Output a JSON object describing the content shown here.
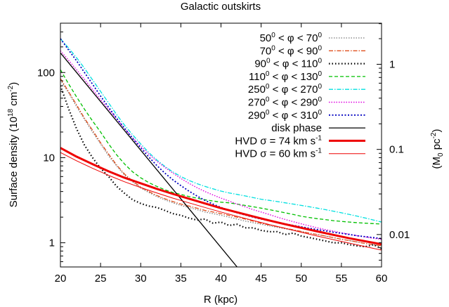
{
  "chart_data": {
    "type": "line",
    "title": "Galactic outskirts",
    "xlabel": "R (kpc)",
    "ylabel": {
      "main": "Surface density (10",
      "sup1": "18",
      "mid": " cm",
      "sup2": "-2",
      "end": ")"
    },
    "y2label": {
      "main": "(M",
      "sub": "0",
      "mid": " pc",
      "sup": "-2",
      "end": ")"
    },
    "xlim": [
      20,
      60
    ],
    "ylim": [
      0.52,
      380
    ],
    "yscale": "log",
    "xticks": [
      20,
      25,
      30,
      35,
      40,
      45,
      50,
      55,
      60
    ],
    "yticks": [
      {
        "value": 1,
        "label": "1"
      },
      {
        "value": 10,
        "label": "10"
      },
      {
        "value": 100,
        "label": "100"
      }
    ],
    "y2ticks": [
      {
        "value": 1.25,
        "label": "0.01"
      },
      {
        "value": 12.5,
        "label": "0.1"
      },
      {
        "value": 125,
        "label": "1"
      }
    ],
    "grid": false,
    "legend_position": "top-right",
    "series": [
      {
        "legend": {
          "a": "50",
          "as": "0",
          "b": " < φ < 70",
          "bs": "0"
        },
        "color": "#777777",
        "dash": "1.5,2",
        "width": 1.2,
        "x": [
          20,
          21,
          22,
          23,
          24,
          25,
          26,
          27,
          28,
          29,
          30,
          31,
          32,
          33,
          34,
          35,
          36,
          37,
          38,
          39,
          40,
          41,
          42,
          43,
          44,
          45,
          46,
          47,
          48,
          49,
          50,
          51,
          52,
          53,
          54,
          55,
          56,
          57,
          58,
          59,
          60
        ],
        "y": [
          82,
          58,
          40,
          28,
          20,
          14.5,
          10.5,
          8,
          6.2,
          5.2,
          4.4,
          3.9,
          3.5,
          3.2,
          2.95,
          2.75,
          2.6,
          2.45,
          2.3,
          2.2,
          2.1,
          2.0,
          1.9,
          1.8,
          1.72,
          1.65,
          1.58,
          1.52,
          1.46,
          1.4,
          1.35,
          1.3,
          1.25,
          1.2,
          1.15,
          1.1,
          1.06,
          1.02,
          0.98,
          0.95,
          0.92
        ]
      },
      {
        "legend": {
          "a": "70",
          "as": "0",
          "b": " < φ < 90",
          "bs": "0"
        },
        "color": "#e0501e",
        "dash": "6,2,1.5,2",
        "width": 1.3,
        "x": [
          20,
          21,
          22,
          23,
          24,
          25,
          26,
          27,
          28,
          29,
          30,
          31,
          32,
          33,
          34,
          35,
          36,
          37,
          38,
          39,
          40,
          41,
          42,
          43,
          44,
          45,
          46,
          47,
          48,
          49,
          50,
          51,
          52,
          53,
          54,
          55,
          56,
          57,
          58,
          59,
          60
        ],
        "y": [
          85,
          60,
          42,
          29,
          21,
          15,
          11,
          8.2,
          6.4,
          5.3,
          4.5,
          4.0,
          3.6,
          3.3,
          3.05,
          2.85,
          2.7,
          2.55,
          2.4,
          2.3,
          2.2,
          2.1,
          2.0,
          1.9,
          1.8,
          1.7,
          1.62,
          1.55,
          1.48,
          1.42,
          1.36,
          1.3,
          1.25,
          1.2,
          1.15,
          1.1,
          1.06,
          1.02,
          0.98,
          0.95,
          0.92
        ]
      },
      {
        "legend": {
          "a": "90",
          "as": "0",
          "b": " < φ < 110",
          "bs": "0"
        },
        "color": "#000000",
        "dash": "1.5,3",
        "width": 2.2,
        "x": [
          20,
          21,
          22,
          23,
          24,
          25,
          26,
          27,
          28,
          29,
          30,
          31,
          32,
          33,
          34,
          35,
          36,
          37,
          38,
          39,
          40,
          41,
          42,
          43,
          44,
          45,
          46,
          47,
          48,
          49,
          50,
          51,
          52,
          53,
          54,
          55,
          56,
          57,
          58,
          59,
          60
        ],
        "y": [
          70,
          38,
          22,
          14,
          10,
          7.5,
          6,
          4.6,
          3.8,
          3.2,
          2.9,
          2.7,
          2.6,
          2.4,
          2.2,
          2.1,
          1.95,
          1.85,
          1.9,
          1.7,
          1.75,
          1.6,
          1.65,
          1.5,
          1.5,
          1.4,
          1.35,
          1.35,
          1.25,
          1.3,
          1.2,
          1.15,
          1.1,
          1.05,
          1.0,
          1.0,
          0.95,
          0.92,
          0.9,
          0.95,
          0.85
        ]
      },
      {
        "legend": {
          "a": "110",
          "as": "0",
          "b": " < φ < 130",
          "bs": "0"
        },
        "color": "#00c000",
        "dash": "5,3",
        "width": 1.3,
        "x": [
          20,
          21,
          22,
          23,
          24,
          25,
          26,
          27,
          28,
          29,
          30,
          31,
          32,
          33,
          34,
          35,
          36,
          37,
          38,
          39,
          40,
          41,
          42,
          43,
          44,
          45,
          46,
          47,
          48,
          49,
          50,
          51,
          52,
          53,
          54,
          55,
          56,
          57,
          58,
          59,
          60
        ],
        "y": [
          108,
          74,
          52,
          37,
          27,
          20,
          14.5,
          10.8,
          8.4,
          6.8,
          5.8,
          5.1,
          4.6,
          4.2,
          3.9,
          3.7,
          3.5,
          3.35,
          3.2,
          3.1,
          3.0,
          2.95,
          2.85,
          2.75,
          2.65,
          2.55,
          2.45,
          2.35,
          2.25,
          2.15,
          2.05,
          1.98,
          1.92,
          1.87,
          1.82,
          1.78,
          1.75,
          1.72,
          1.7,
          1.68,
          1.66
        ]
      },
      {
        "legend": {
          "a": "250",
          "as": "0",
          "b": " < φ < 270",
          "bs": "0"
        },
        "color": "#00e0e0",
        "dash": "6,2,1.5,2",
        "width": 1.3,
        "x": [
          20,
          21,
          22,
          23,
          24,
          25,
          26,
          27,
          28,
          29,
          30,
          31,
          32,
          33,
          34,
          35,
          36,
          37,
          38,
          39,
          40,
          41,
          42,
          43,
          44,
          45,
          46,
          47,
          48,
          49,
          50,
          51,
          52,
          53,
          54,
          55,
          56,
          57,
          58,
          59,
          60
        ],
        "y": [
          250,
          195,
          150,
          112,
          82,
          60,
          44,
          32,
          24,
          18.5,
          14.5,
          11.5,
          9.4,
          7.9,
          6.8,
          6.0,
          5.4,
          4.95,
          4.6,
          4.3,
          4.05,
          3.85,
          3.7,
          3.55,
          3.4,
          3.25,
          3.15,
          3.05,
          2.95,
          2.85,
          2.75,
          2.65,
          2.55,
          2.45,
          2.35,
          2.25,
          2.15,
          2.05,
          1.95,
          1.85,
          1.75
        ]
      },
      {
        "legend": {
          "a": "270",
          "as": "0",
          "b": " < φ < 290",
          "bs": "0"
        },
        "color": "#e000e0",
        "dash": "1.5,2",
        "width": 1.4,
        "x": [
          20,
          21,
          22,
          23,
          24,
          25,
          26,
          27,
          28,
          29,
          30,
          31,
          32,
          33,
          34,
          35,
          36,
          37,
          38,
          39,
          40,
          41,
          42,
          43,
          44,
          45,
          46,
          47,
          48,
          49,
          50,
          51,
          52,
          53,
          54,
          55,
          56,
          57,
          58,
          59,
          60
        ],
        "y": [
          180,
          140,
          108,
          83,
          63,
          48,
          37,
          28.5,
          22,
          17.2,
          13.6,
          11,
          9.1,
          7.7,
          6.6,
          5.7,
          5.0,
          4.45,
          4.0,
          3.65,
          3.35,
          3.1,
          2.85,
          2.65,
          2.45,
          2.3,
          2.15,
          2.0,
          1.88,
          1.77,
          1.67,
          1.58,
          1.5,
          1.43,
          1.37,
          1.31,
          1.26,
          1.21,
          1.17,
          1.13,
          1.1
        ]
      },
      {
        "legend": {
          "a": "290",
          "as": "0",
          "b": " < φ < 310",
          "bs": "0"
        },
        "color": "#0000c0",
        "dash": "2,2.5",
        "width": 1.8,
        "x": [
          20,
          21,
          22,
          23,
          24,
          25,
          26,
          27,
          28,
          29,
          30,
          31,
          32,
          33,
          34,
          35,
          36,
          37,
          38,
          39,
          40,
          41,
          42,
          43,
          44,
          45,
          46,
          47,
          48,
          49,
          50,
          51,
          52,
          53,
          54,
          55,
          56,
          57,
          58,
          59,
          60
        ],
        "y": [
          250,
          185,
          138,
          100,
          73,
          53,
          39,
          29,
          22,
          16.8,
          13,
          10.2,
          8.1,
          6.6,
          5.5,
          4.7,
          4.05,
          3.55,
          3.15,
          2.85,
          2.6,
          2.4,
          2.25,
          2.12,
          2.0,
          1.9,
          1.82,
          1.74,
          1.67,
          1.6,
          1.54,
          1.48,
          1.43,
          1.38,
          1.33,
          1.29,
          1.25,
          1.21,
          1.18,
          1.15,
          1.12
        ]
      },
      {
        "legend": {
          "a": "disk phase",
          "as": "",
          "b": "",
          "bs": ""
        },
        "color": "#000000",
        "dash": "",
        "width": 1.3,
        "x": [
          20,
          42
        ],
        "y": [
          170,
          0.52
        ]
      },
      {
        "legend": {
          "a": "HVD σ = 74 km s",
          "as": "-1",
          "b": "",
          "bs": ""
        },
        "color": "#ee0000",
        "dash": "",
        "width": 3,
        "x": [
          20,
          22,
          24,
          26,
          28,
          30,
          32,
          34,
          36,
          38,
          40,
          42,
          44,
          46,
          48,
          50,
          52,
          54,
          56,
          58,
          60
        ],
        "y": [
          13,
          10.3,
          8.4,
          6.9,
          5.8,
          5.0,
          4.3,
          3.75,
          3.3,
          2.9,
          2.55,
          2.28,
          2.04,
          1.83,
          1.65,
          1.5,
          1.36,
          1.24,
          1.13,
          1.04,
          0.96
        ]
      },
      {
        "legend": {
          "a": "HVD σ = 60 km s",
          "as": "-1",
          "b": "",
          "bs": ""
        },
        "color": "#ee0000",
        "dash": "",
        "width": 1,
        "x": [
          20,
          22,
          24,
          26,
          28,
          30,
          32,
          34,
          36,
          38,
          40,
          42,
          44,
          46,
          48,
          50,
          52,
          54,
          56,
          58,
          60
        ],
        "y": [
          11.5,
          9.2,
          7.5,
          6.2,
          5.2,
          4.45,
          3.85,
          3.35,
          2.95,
          2.6,
          2.3,
          2.05,
          1.83,
          1.64,
          1.48,
          1.33,
          1.2,
          1.09,
          0.99,
          0.9,
          0.82
        ]
      }
    ]
  }
}
